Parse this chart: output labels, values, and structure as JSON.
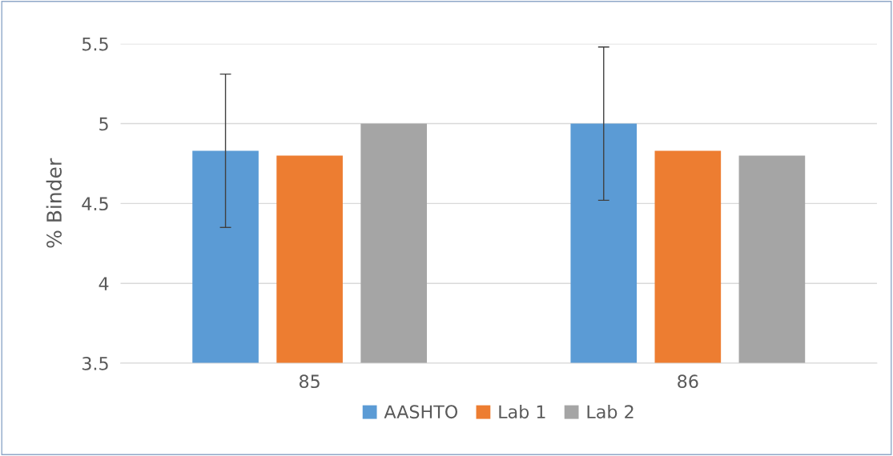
{
  "chart_data": {
    "type": "bar",
    "ylabel": "% Binder",
    "categories": [
      "85",
      "86"
    ],
    "series": [
      {
        "name": "AASHTO",
        "color": "#5b9bd5",
        "values": [
          4.83,
          5.0
        ],
        "errors": [
          0.48,
          0.48
        ]
      },
      {
        "name": "Lab 1",
        "color": "#ed7d31",
        "values": [
          4.8,
          4.83
        ]
      },
      {
        "name": "Lab 2",
        "color": "#a5a5a5",
        "values": [
          5.0,
          4.8
        ]
      }
    ],
    "ylim": [
      3.5,
      5.5
    ],
    "yticks": [
      3.5,
      4,
      4.5,
      5,
      5.5
    ],
    "grid": "y",
    "legend": "bottom"
  }
}
